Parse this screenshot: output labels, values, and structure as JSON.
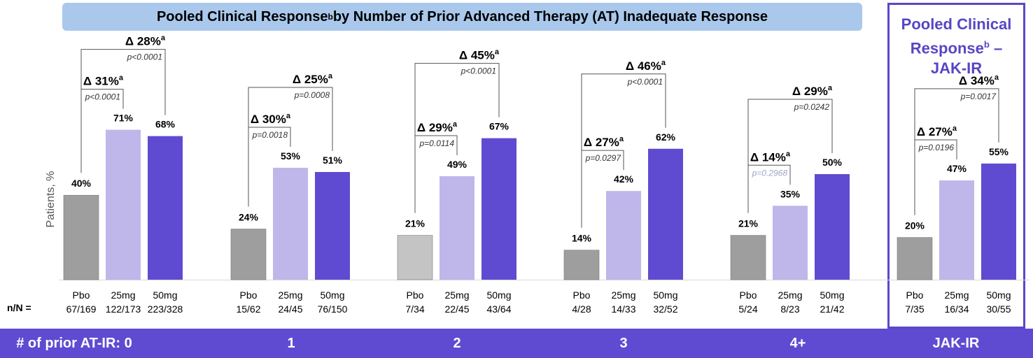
{
  "title": {
    "main": "Pooled Clinical Response",
    "sup": "b",
    "rest": " by Number of Prior Advanced Therapy (AT) Inadequate Response"
  },
  "jak_title": {
    "line1": "Pooled Clinical",
    "line2a": "Response",
    "sup": "b",
    "line2b": " –",
    "line3": "JAK-IR"
  },
  "ylabel": "Patients, %",
  "nn_label": "n/N =",
  "colors": {
    "pbo": "#9e9e9e",
    "pbo_light": "#c4c4c4",
    "d25": "#bfb6ea",
    "d50": "#5f4bd1",
    "footer": "#5f4bd1",
    "title_bg": "#a9c8ec",
    "ns_pvalue": "#9aa8c2"
  },
  "chart_data": {
    "type": "bar",
    "ylabel": "Patients, %",
    "ylim": [
      0,
      100
    ],
    "dose_labels": [
      "Pbo",
      "25mg",
      "50mg"
    ],
    "groups": [
      {
        "footer": "# of prior AT-IR: 0",
        "values": [
          40,
          71,
          68
        ],
        "value_labels": [
          "40%",
          "71%",
          "68%"
        ],
        "nN": [
          "67/169",
          "122/173",
          "223/328"
        ],
        "delta_25": {
          "label": "Δ 31%",
          "p": "p<0.0001"
        },
        "delta_50": {
          "label": "Δ 28%",
          "p": "p<0.0001"
        }
      },
      {
        "footer": "1",
        "values": [
          24,
          53,
          51
        ],
        "value_labels": [
          "24%",
          "53%",
          "51%"
        ],
        "nN": [
          "15/62",
          "24/45",
          "76/150"
        ],
        "delta_25": {
          "label": "Δ 30%",
          "p": "p=0.0018"
        },
        "delta_50": {
          "label": "Δ 25%",
          "p": "p=0.0008"
        }
      },
      {
        "footer": "2",
        "values": [
          21,
          49,
          67
        ],
        "value_labels": [
          "21%",
          "49%",
          "67%"
        ],
        "nN": [
          "7/34",
          "22/45",
          "43/64"
        ],
        "delta_25": {
          "label": "Δ 29%",
          "p": "p=0.0114"
        },
        "delta_50": {
          "label": "Δ 45%",
          "p": "p<0.0001"
        }
      },
      {
        "footer": "3",
        "values": [
          14,
          42,
          62
        ],
        "value_labels": [
          "14%",
          "42%",
          "62%"
        ],
        "nN": [
          "4/28",
          "14/33",
          "32/52"
        ],
        "delta_25": {
          "label": "Δ 27%",
          "p": "p=0.0297"
        },
        "delta_50": {
          "label": "Δ 46%",
          "p": "p<0.0001"
        }
      },
      {
        "footer": "4+",
        "values": [
          21,
          35,
          50
        ],
        "value_labels": [
          "21%",
          "35%",
          "50%"
        ],
        "nN": [
          "5/24",
          "8/23",
          "21/42"
        ],
        "delta_25": {
          "label": "Δ 14%",
          "p": "p=0.2968"
        },
        "delta_50": {
          "label": "Δ 29%",
          "p": "p=0.0242"
        }
      },
      {
        "footer": "JAK-IR",
        "values": [
          20,
          47,
          55
        ],
        "value_labels": [
          "20%",
          "47%",
          "55%"
        ],
        "nN": [
          "7/35",
          "16/34",
          "30/55"
        ],
        "delta_25": {
          "label": "Δ 27%",
          "p": "p=0.0196"
        },
        "delta_50": {
          "label": "Δ 34%",
          "p": "p=0.0017"
        }
      }
    ],
    "delta_sup": "a"
  }
}
